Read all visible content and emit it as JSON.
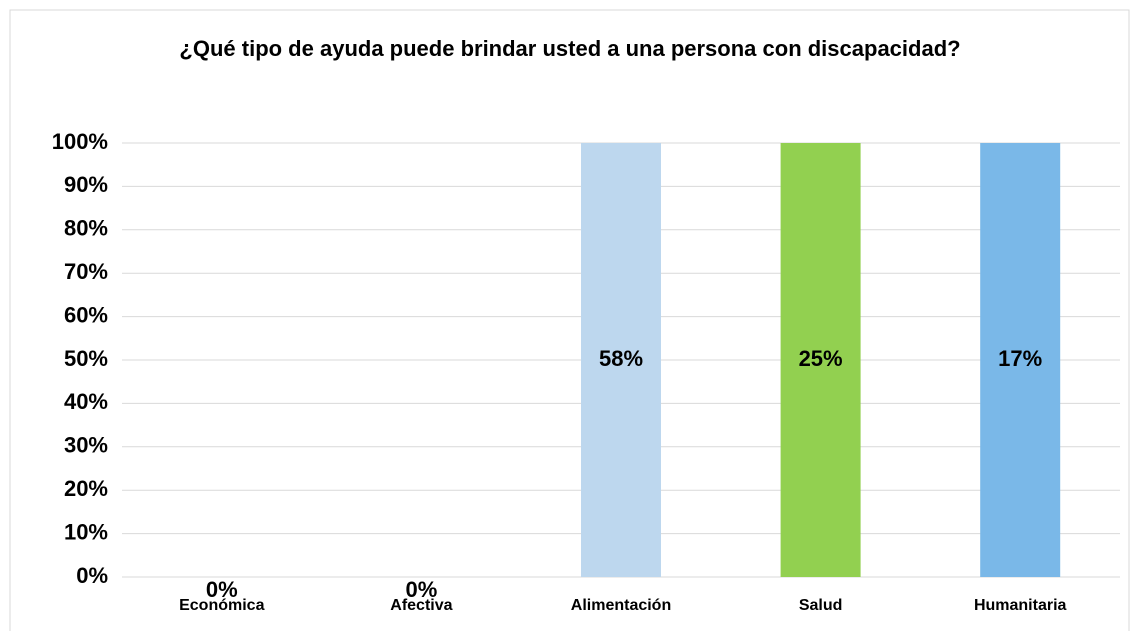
{
  "chart_data": {
    "type": "bar",
    "stacking": "percent",
    "title": "¿Qué tipo de ayuda puede brindar usted a una persona con discapacidad?",
    "categories": [
      "Económica",
      "Afectiva",
      "Alimentación",
      "Salud",
      "Humanitaria"
    ],
    "values": [
      0,
      0,
      58,
      25,
      17
    ],
    "value_labels": [
      "0%",
      "0%",
      "58%",
      "25%",
      "17%"
    ],
    "colors": [
      "#bdd7ee",
      "#bdd7ee",
      "#bdd7ee",
      "#92d050",
      "#7ab8e8"
    ],
    "ylim": [
      0,
      100
    ],
    "yticks": [
      {
        "value": 0,
        "label": "0%"
      },
      {
        "value": 10,
        "label": "10%"
      },
      {
        "value": 20,
        "label": "20%"
      },
      {
        "value": 30,
        "label": "30%"
      },
      {
        "value": 40,
        "label": "40%"
      },
      {
        "value": 50,
        "label": "50%"
      },
      {
        "value": 60,
        "label": "60%"
      },
      {
        "value": 70,
        "label": "70%"
      },
      {
        "value": 80,
        "label": "80%"
      },
      {
        "value": 90,
        "label": "90%"
      },
      {
        "value": 100,
        "label": "100%"
      }
    ],
    "grid": true
  }
}
